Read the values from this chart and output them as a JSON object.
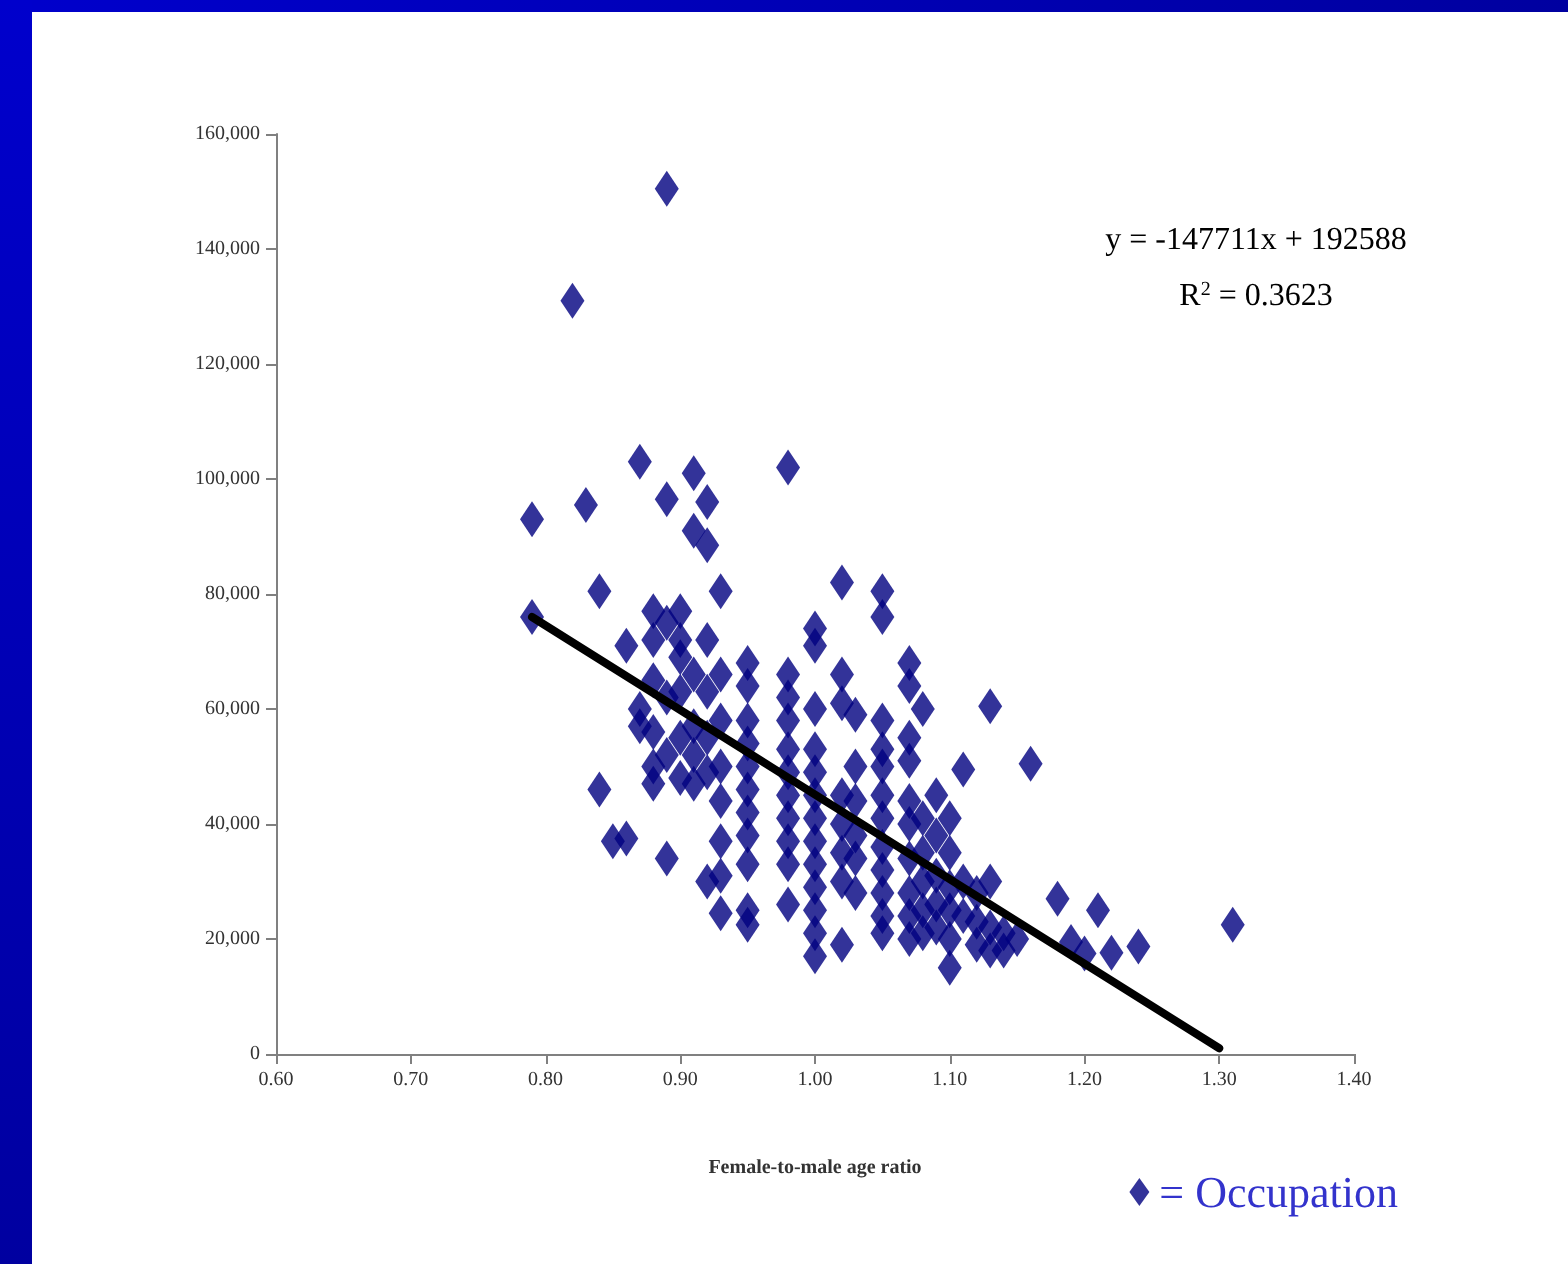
{
  "chart_data": {
    "type": "scatter",
    "xlabel": "Female-to-male age ratio",
    "grid": false,
    "legend": "bottom right",
    "xlim": [
      0.6,
      1.4
    ],
    "xticks": [
      {
        "value": 0.6,
        "label": "0.60"
      },
      {
        "value": 0.7,
        "label": "0.70"
      },
      {
        "value": 0.8,
        "label": "0.80"
      },
      {
        "value": 0.9,
        "label": "0.90"
      },
      {
        "value": 1.0,
        "label": "1.00"
      },
      {
        "value": 1.1,
        "label": "1.10"
      },
      {
        "value": 1.2,
        "label": "1.20"
      },
      {
        "value": 1.3,
        "label": "1.30"
      },
      {
        "value": 1.4,
        "label": "1.40"
      }
    ],
    "ylim": [
      0,
      160000
    ],
    "yticks": [
      {
        "value": 0,
        "label": "0"
      },
      {
        "value": 20000,
        "label": "20,000"
      },
      {
        "value": 40000,
        "label": "40,000"
      },
      {
        "value": 60000,
        "label": "60,000"
      },
      {
        "value": 80000,
        "label": "80,000"
      },
      {
        "value": 100000,
        "label": "100,000"
      },
      {
        "value": 120000,
        "label": "120,000"
      },
      {
        "value": 140000,
        "label": "140,000"
      },
      {
        "value": 160000,
        "label": "160,000"
      }
    ],
    "annotations": [
      "y = -147711x + 192588",
      "R$^{2}$ = 0.3623"
    ],
    "series": [
      {
        "name": "= Occupation",
        "color": "#000080",
        "marker": "diamond",
        "x": [
          0.79,
          0.79,
          0.82,
          0.83,
          0.84,
          0.84,
          0.85,
          0.86,
          0.86,
          0.87,
          0.87,
          0.87,
          0.88,
          0.88,
          0.88,
          0.88,
          0.88,
          0.88,
          0.89,
          0.89,
          0.89,
          0.89,
          0.89,
          0.89,
          0.9,
          0.9,
          0.9,
          0.9,
          0.9,
          0.9,
          0.91,
          0.91,
          0.91,
          0.91,
          0.91,
          0.91,
          0.92,
          0.92,
          0.92,
          0.92,
          0.92,
          0.92,
          0.92,
          0.93,
          0.93,
          0.93,
          0.93,
          0.93,
          0.93,
          0.93,
          0.93,
          0.95,
          0.95,
          0.95,
          0.95,
          0.95,
          0.95,
          0.95,
          0.95,
          0.95,
          0.95,
          0.95,
          0.98,
          0.98,
          0.98,
          0.98,
          0.98,
          0.98,
          0.98,
          0.98,
          0.98,
          0.98,
          0.98,
          1.0,
          1.0,
          1.0,
          1.0,
          1.0,
          1.0,
          1.0,
          1.0,
          1.0,
          1.0,
          1.0,
          1.0,
          1.0,
          1.02,
          1.02,
          1.02,
          1.02,
          1.02,
          1.02,
          1.02,
          1.02,
          1.03,
          1.03,
          1.03,
          1.03,
          1.03,
          1.03,
          1.05,
          1.05,
          1.05,
          1.05,
          1.05,
          1.05,
          1.05,
          1.05,
          1.05,
          1.05,
          1.05,
          1.05,
          1.07,
          1.07,
          1.07,
          1.07,
          1.07,
          1.07,
          1.07,
          1.07,
          1.07,
          1.07,
          1.08,
          1.08,
          1.08,
          1.08,
          1.08,
          1.08,
          1.09,
          1.09,
          1.09,
          1.09,
          1.09,
          1.1,
          1.1,
          1.1,
          1.1,
          1.1,
          1.1,
          1.11,
          1.11,
          1.11,
          1.12,
          1.12,
          1.12,
          1.13,
          1.13,
          1.13,
          1.13,
          1.14,
          1.14,
          1.15,
          1.16,
          1.18,
          1.19,
          1.2,
          1.21,
          1.22,
          1.24,
          1.31
        ],
        "values": [
          93000,
          76000,
          131000,
          95500,
          80500,
          46000,
          37000,
          71000,
          37500,
          103000,
          60000,
          57000,
          77000,
          72000,
          65000,
          56000,
          50000,
          47000,
          150500,
          96500,
          75000,
          62000,
          52000,
          34000,
          77000,
          72000,
          69000,
          63000,
          55000,
          48000,
          101000,
          91000,
          66000,
          57000,
          52000,
          47000,
          88500,
          96000,
          72000,
          63000,
          55000,
          49000,
          30000,
          80500,
          66000,
          58000,
          50000,
          44000,
          37000,
          31000,
          24500,
          68000,
          64000,
          58000,
          54000,
          50000,
          46000,
          42000,
          38000,
          33000,
          25000,
          22500,
          102000,
          66000,
          62000,
          58000,
          53000,
          49000,
          45000,
          41000,
          37000,
          33000,
          26000,
          74000,
          71000,
          60000,
          53000,
          49000,
          45000,
          41000,
          37000,
          33000,
          29000,
          25000,
          21000,
          17000,
          82000,
          66000,
          61000,
          45000,
          40000,
          35000,
          30000,
          19000,
          59000,
          50000,
          44000,
          38000,
          34000,
          28000,
          80500,
          76000,
          58000,
          53000,
          50000,
          45000,
          41000,
          36000,
          32000,
          28000,
          24000,
          21000,
          68000,
          64000,
          55000,
          51000,
          44000,
          40000,
          34000,
          28000,
          24000,
          20000,
          60000,
          41000,
          35000,
          30000,
          25000,
          21000,
          45000,
          38000,
          31000,
          26000,
          22000,
          41000,
          35000,
          29000,
          25000,
          20000,
          15000,
          49500,
          30000,
          24000,
          28000,
          23000,
          19000,
          60500,
          30000,
          22000,
          18000,
          21000,
          18000,
          20000,
          50500,
          27000,
          19500,
          17500,
          25000,
          17600,
          18700,
          22500
        ]
      },
      {
        "color": "#000000",
        "type": "line",
        "marker": "none",
        "x": [
          0.79,
          1.3
        ],
        "values": [
          76000,
          1000
        ]
      }
    ]
  }
}
